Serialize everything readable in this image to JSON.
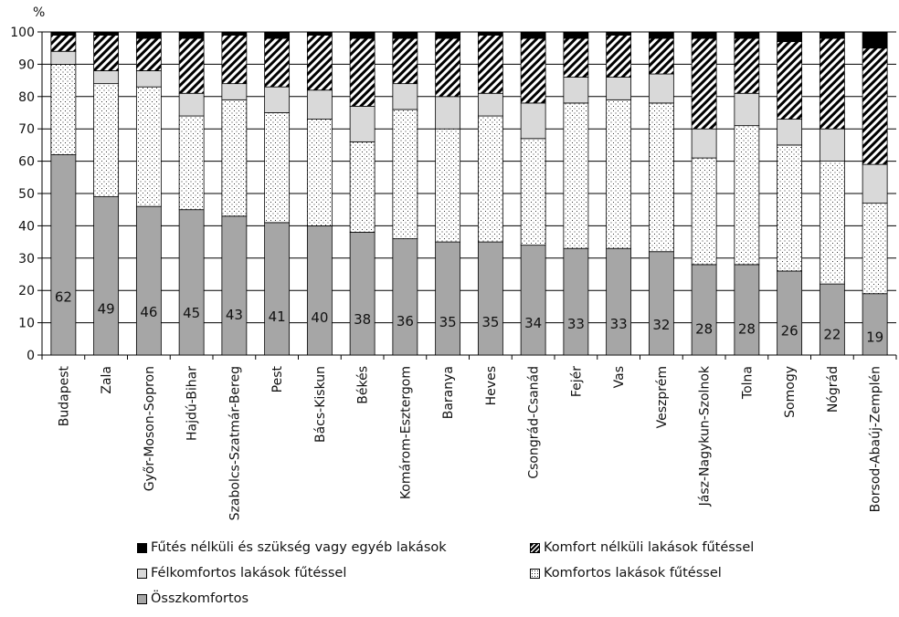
{
  "chart_data": {
    "type": "bar",
    "stacked": true,
    "ylabel": "%",
    "ylim": [
      0,
      100
    ],
    "yticks": [
      0,
      10,
      20,
      30,
      40,
      50,
      60,
      70,
      80,
      90,
      100
    ],
    "grid": true,
    "legend_position": "bottom",
    "categories": [
      "Budapest",
      "Zala",
      "Győr-Moson-Sopron",
      "Hajdú-Bihar",
      "Szabolcs-Szatmár-Bereg",
      "Pest",
      "Bács-Kiskun",
      "Békés",
      "Komárom-Esztergom",
      "Baranya",
      "Heves",
      "Csongrád-Csanád",
      "Fejér",
      "Vas",
      "Veszprém",
      "Jász-Nagykun-Szolnok",
      "Tolna",
      "Somogy",
      "Nógrád",
      "Borsod-Abaúj-Zemplén"
    ],
    "series": [
      {
        "name": "Összkomfortos",
        "pattern": "solid-gray",
        "color": "#a6a6a6",
        "values": [
          62,
          49,
          46,
          45,
          43,
          41,
          40,
          38,
          36,
          35,
          35,
          34,
          33,
          33,
          32,
          28,
          28,
          26,
          22,
          19
        ]
      },
      {
        "name": "Komfortos lakások fűtéssel",
        "pattern": "dotted",
        "color": "#ffffff",
        "values": [
          28,
          35,
          37,
          29,
          36,
          34,
          33,
          28,
          40,
          35,
          39,
          33,
          45,
          46,
          46,
          33,
          43,
          39,
          38,
          28
        ]
      },
      {
        "name": "Félkomfortos lakások fűtéssel",
        "pattern": "solid-light-gray",
        "color": "#d9d9d9",
        "values": [
          4,
          4,
          5,
          7,
          5,
          8,
          9,
          11,
          8,
          10,
          7,
          11,
          8,
          7,
          9,
          9,
          10,
          8,
          10,
          12
        ]
      },
      {
        "name": "Komfort nélküli lakások fűtéssel",
        "pattern": "diagonal-hatch",
        "color": "#000000",
        "values": [
          5,
          11,
          10,
          17,
          15,
          15,
          17,
          21,
          14,
          18,
          18,
          20,
          12,
          13,
          11,
          28,
          17,
          24,
          28,
          36
        ]
      },
      {
        "name": "Fűtés nélküli és szükség vagy egyéb lakások",
        "pattern": "solid-black",
        "color": "#000000",
        "values": [
          1,
          1,
          2,
          2,
          1,
          2,
          1,
          2,
          2,
          2,
          1,
          2,
          2,
          1,
          2,
          2,
          2,
          3,
          2,
          5
        ]
      }
    ],
    "data_labels": [
      "62",
      "49",
      "46",
      "45",
      "43",
      "41",
      "40",
      "38",
      "36",
      "35",
      "35",
      "34",
      "33",
      "33",
      "32",
      "28",
      "28",
      "26",
      "22",
      "19"
    ]
  },
  "legend": {
    "items": [
      {
        "label": "Fűtés nélküli és szükség vagy egyéb lakások",
        "series_index": 4
      },
      {
        "label": "Komfort nélküli lakások fűtéssel",
        "series_index": 3
      },
      {
        "label": "Félkomfortos lakások fűtéssel",
        "series_index": 2
      },
      {
        "label": "Komfortos lakások fűtéssel",
        "series_index": 1
      },
      {
        "label": "Összkomfortos",
        "series_index": 0
      }
    ]
  }
}
